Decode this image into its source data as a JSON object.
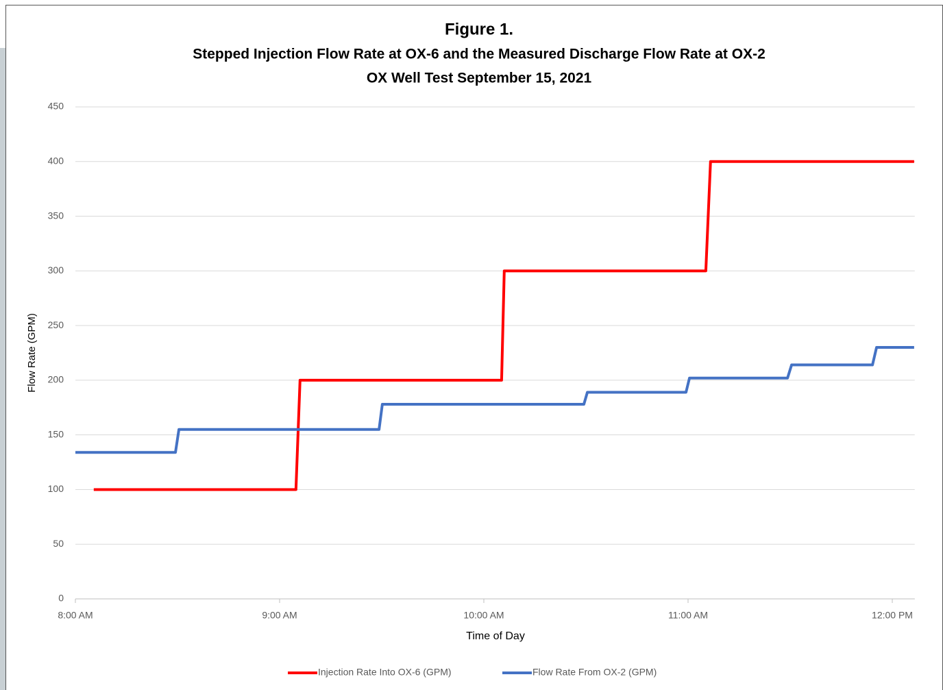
{
  "chart_data": {
    "type": "line",
    "title": "Figure 1.",
    "subtitle": [
      "Stepped Injection Flow Rate at OX-6 and the Measured Discharge Flow Rate at OX-2",
      "OX Well Test September 15, 2021"
    ],
    "y_label": "Flow Rate (GPM)",
    "x_label": "Time of Day",
    "xlim": [
      8,
      12.11
    ],
    "xticks": [
      {
        "value": 8,
        "label": "8:00 AM"
      },
      {
        "value": 9,
        "label": "9:00 AM"
      },
      {
        "value": 10,
        "label": "10:00 AM"
      },
      {
        "value": 11,
        "label": "11:00 AM"
      },
      {
        "value": 12,
        "label": "12:00 PM"
      }
    ],
    "ylim": [
      0,
      450
    ],
    "yticks": [
      0,
      50,
      100,
      150,
      200,
      250,
      300,
      350,
      400,
      450
    ],
    "grid": true,
    "legend": "bottom",
    "series": [
      {
        "name": "Injection Rate Into OX-6 (GPM)",
        "color": "#ff0000",
        "x": [
          8.09,
          9.08,
          9.1,
          10.087,
          10.1,
          11.087,
          11.11,
          12.107
        ],
        "values": [
          100,
          100,
          200,
          200,
          300,
          300,
          400,
          400
        ]
      },
      {
        "name": "Flow Rate From OX-2 (GPM)",
        "color": "#4472c4",
        "x": [
          8.0,
          8.49,
          8.507,
          9.487,
          9.503,
          10.49,
          10.507,
          10.99,
          11.007,
          11.487,
          11.507,
          11.903,
          11.923,
          12.107
        ],
        "values": [
          134,
          134,
          155,
          155,
          178,
          178,
          189,
          189,
          202,
          202,
          214,
          214,
          230,
          230
        ]
      }
    ]
  }
}
